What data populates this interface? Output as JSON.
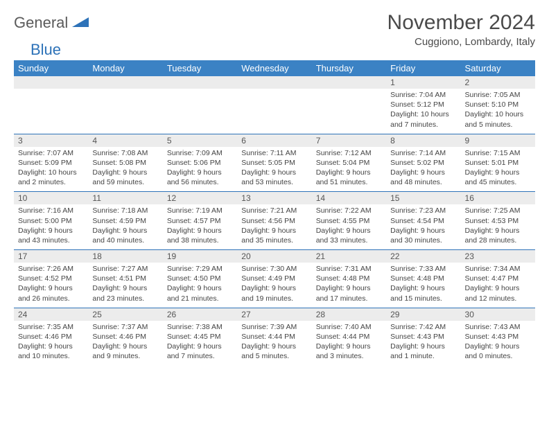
{
  "brand": {
    "name_a": "General",
    "name_b": "Blue"
  },
  "title": "November 2024",
  "location": "Cuggiono, Lombardy, Italy",
  "day_headers": [
    "Sunday",
    "Monday",
    "Tuesday",
    "Wednesday",
    "Thursday",
    "Friday",
    "Saturday"
  ],
  "colors": {
    "header_bg": "#3b82c4",
    "header_text": "#ffffff",
    "daynum_bg": "#ececec",
    "border": "#2d72b8",
    "text": "#444444",
    "brand_gray": "#5a5a5a",
    "brand_blue": "#2d72b8"
  },
  "weeks": [
    [
      {
        "n": "",
        "sr": "",
        "ss": "",
        "dl": ""
      },
      {
        "n": "",
        "sr": "",
        "ss": "",
        "dl": ""
      },
      {
        "n": "",
        "sr": "",
        "ss": "",
        "dl": ""
      },
      {
        "n": "",
        "sr": "",
        "ss": "",
        "dl": ""
      },
      {
        "n": "",
        "sr": "",
        "ss": "",
        "dl": ""
      },
      {
        "n": "1",
        "sr": "Sunrise: 7:04 AM",
        "ss": "Sunset: 5:12 PM",
        "dl": "Daylight: 10 hours and 7 minutes."
      },
      {
        "n": "2",
        "sr": "Sunrise: 7:05 AM",
        "ss": "Sunset: 5:10 PM",
        "dl": "Daylight: 10 hours and 5 minutes."
      }
    ],
    [
      {
        "n": "3",
        "sr": "Sunrise: 7:07 AM",
        "ss": "Sunset: 5:09 PM",
        "dl": "Daylight: 10 hours and 2 minutes."
      },
      {
        "n": "4",
        "sr": "Sunrise: 7:08 AM",
        "ss": "Sunset: 5:08 PM",
        "dl": "Daylight: 9 hours and 59 minutes."
      },
      {
        "n": "5",
        "sr": "Sunrise: 7:09 AM",
        "ss": "Sunset: 5:06 PM",
        "dl": "Daylight: 9 hours and 56 minutes."
      },
      {
        "n": "6",
        "sr": "Sunrise: 7:11 AM",
        "ss": "Sunset: 5:05 PM",
        "dl": "Daylight: 9 hours and 53 minutes."
      },
      {
        "n": "7",
        "sr": "Sunrise: 7:12 AM",
        "ss": "Sunset: 5:04 PM",
        "dl": "Daylight: 9 hours and 51 minutes."
      },
      {
        "n": "8",
        "sr": "Sunrise: 7:14 AM",
        "ss": "Sunset: 5:02 PM",
        "dl": "Daylight: 9 hours and 48 minutes."
      },
      {
        "n": "9",
        "sr": "Sunrise: 7:15 AM",
        "ss": "Sunset: 5:01 PM",
        "dl": "Daylight: 9 hours and 45 minutes."
      }
    ],
    [
      {
        "n": "10",
        "sr": "Sunrise: 7:16 AM",
        "ss": "Sunset: 5:00 PM",
        "dl": "Daylight: 9 hours and 43 minutes."
      },
      {
        "n": "11",
        "sr": "Sunrise: 7:18 AM",
        "ss": "Sunset: 4:59 PM",
        "dl": "Daylight: 9 hours and 40 minutes."
      },
      {
        "n": "12",
        "sr": "Sunrise: 7:19 AM",
        "ss": "Sunset: 4:57 PM",
        "dl": "Daylight: 9 hours and 38 minutes."
      },
      {
        "n": "13",
        "sr": "Sunrise: 7:21 AM",
        "ss": "Sunset: 4:56 PM",
        "dl": "Daylight: 9 hours and 35 minutes."
      },
      {
        "n": "14",
        "sr": "Sunrise: 7:22 AM",
        "ss": "Sunset: 4:55 PM",
        "dl": "Daylight: 9 hours and 33 minutes."
      },
      {
        "n": "15",
        "sr": "Sunrise: 7:23 AM",
        "ss": "Sunset: 4:54 PM",
        "dl": "Daylight: 9 hours and 30 minutes."
      },
      {
        "n": "16",
        "sr": "Sunrise: 7:25 AM",
        "ss": "Sunset: 4:53 PM",
        "dl": "Daylight: 9 hours and 28 minutes."
      }
    ],
    [
      {
        "n": "17",
        "sr": "Sunrise: 7:26 AM",
        "ss": "Sunset: 4:52 PM",
        "dl": "Daylight: 9 hours and 26 minutes."
      },
      {
        "n": "18",
        "sr": "Sunrise: 7:27 AM",
        "ss": "Sunset: 4:51 PM",
        "dl": "Daylight: 9 hours and 23 minutes."
      },
      {
        "n": "19",
        "sr": "Sunrise: 7:29 AM",
        "ss": "Sunset: 4:50 PM",
        "dl": "Daylight: 9 hours and 21 minutes."
      },
      {
        "n": "20",
        "sr": "Sunrise: 7:30 AM",
        "ss": "Sunset: 4:49 PM",
        "dl": "Daylight: 9 hours and 19 minutes."
      },
      {
        "n": "21",
        "sr": "Sunrise: 7:31 AM",
        "ss": "Sunset: 4:48 PM",
        "dl": "Daylight: 9 hours and 17 minutes."
      },
      {
        "n": "22",
        "sr": "Sunrise: 7:33 AM",
        "ss": "Sunset: 4:48 PM",
        "dl": "Daylight: 9 hours and 15 minutes."
      },
      {
        "n": "23",
        "sr": "Sunrise: 7:34 AM",
        "ss": "Sunset: 4:47 PM",
        "dl": "Daylight: 9 hours and 12 minutes."
      }
    ],
    [
      {
        "n": "24",
        "sr": "Sunrise: 7:35 AM",
        "ss": "Sunset: 4:46 PM",
        "dl": "Daylight: 9 hours and 10 minutes."
      },
      {
        "n": "25",
        "sr": "Sunrise: 7:37 AM",
        "ss": "Sunset: 4:46 PM",
        "dl": "Daylight: 9 hours and 9 minutes."
      },
      {
        "n": "26",
        "sr": "Sunrise: 7:38 AM",
        "ss": "Sunset: 4:45 PM",
        "dl": "Daylight: 9 hours and 7 minutes."
      },
      {
        "n": "27",
        "sr": "Sunrise: 7:39 AM",
        "ss": "Sunset: 4:44 PM",
        "dl": "Daylight: 9 hours and 5 minutes."
      },
      {
        "n": "28",
        "sr": "Sunrise: 7:40 AM",
        "ss": "Sunset: 4:44 PM",
        "dl": "Daylight: 9 hours and 3 minutes."
      },
      {
        "n": "29",
        "sr": "Sunrise: 7:42 AM",
        "ss": "Sunset: 4:43 PM",
        "dl": "Daylight: 9 hours and 1 minute."
      },
      {
        "n": "30",
        "sr": "Sunrise: 7:43 AM",
        "ss": "Sunset: 4:43 PM",
        "dl": "Daylight: 9 hours and 0 minutes."
      }
    ]
  ]
}
